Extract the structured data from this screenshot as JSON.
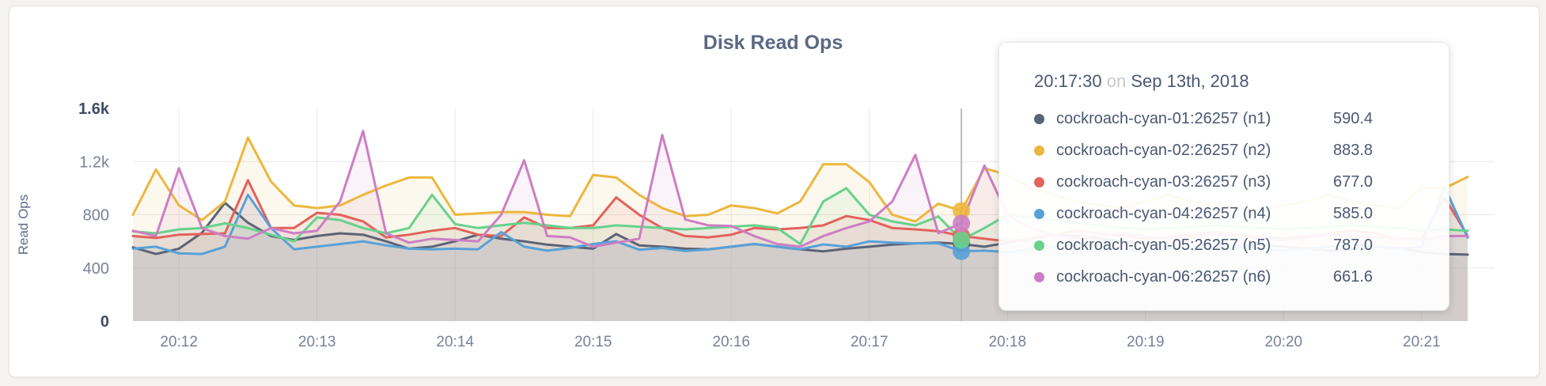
{
  "card": {
    "title": "Disk Read Ops"
  },
  "tooltip": {
    "time": "20:17:30",
    "preposition": "on",
    "date": "Sep 13th, 2018",
    "rows": [
      {
        "label": "cockroach-cyan-01:26257 (n1)",
        "value": "590.4",
        "color": "#5c6377"
      },
      {
        "label": "cockroach-cyan-02:26257 (n2)",
        "value": "883.8",
        "color": "#ecb73e"
      },
      {
        "label": "cockroach-cyan-03:26257 (n3)",
        "value": "677.0",
        "color": "#e2625c"
      },
      {
        "label": "cockroach-cyan-04:26257 (n4)",
        "value": "585.0",
        "color": "#58a1d8"
      },
      {
        "label": "cockroach-cyan-05:26257 (n5)",
        "value": "787.0",
        "color": "#68d18c"
      },
      {
        "label": "cockroach-cyan-06:26257 (n6)",
        "value": "661.6",
        "color": "#cc7ec4"
      }
    ]
  },
  "colors": {
    "page_bg": "#f4f3f1",
    "card_bg": "#ffffff",
    "title": "#5a6884",
    "grid": "#e9e8e5",
    "hover_line": "#bcbcbc",
    "axis_text": "#77819a",
    "axis_text_emph": "#3f4b66"
  },
  "chart_data": {
    "type": "line",
    "title": "Disk Read Ops",
    "xlabel": "",
    "ylabel": "Read Ops",
    "ylim": [
      0,
      1600
    ],
    "grid": true,
    "legend_position": "tooltip-overlay",
    "x_start": "20:11:40",
    "x_interval_seconds": 10,
    "x_ticks": [
      {
        "i": 2,
        "label": "20:12"
      },
      {
        "i": 8,
        "label": "20:13"
      },
      {
        "i": 14,
        "label": "20:14"
      },
      {
        "i": 20,
        "label": "20:15"
      },
      {
        "i": 26,
        "label": "20:16"
      },
      {
        "i": 32,
        "label": "20:17"
      },
      {
        "i": 38,
        "label": "20:18"
      },
      {
        "i": 44,
        "label": "20:19"
      },
      {
        "i": 50,
        "label": "20:20"
      },
      {
        "i": 56,
        "label": "20:21"
      }
    ],
    "y_ticks": [
      {
        "value": 0,
        "label": "0",
        "emphasis": true,
        "grid": false
      },
      {
        "value": 400,
        "label": "400",
        "emphasis": false,
        "grid": true
      },
      {
        "value": 800,
        "label": "800",
        "emphasis": false,
        "grid": true
      },
      {
        "value": 1200,
        "label": "1.2k",
        "emphasis": false,
        "grid": true
      },
      {
        "value": 1600,
        "label": "1.6k",
        "emphasis": true,
        "grid": false
      }
    ],
    "hover": {
      "line_index": 36,
      "tooltip_point_time": "20:17:30",
      "tooltip_point_index": 35
    },
    "series": [
      {
        "name": "cockroach-cyan-01:26257 (n1)",
        "node": "n1",
        "color": "#5c6377",
        "values": [
          555,
          505,
          545,
          665,
          890,
          740,
          640,
          610,
          640,
          660,
          650,
          600,
          545,
          560,
          600,
          650,
          620,
          600,
          575,
          560,
          545,
          655,
          570,
          560,
          545,
          540,
          560,
          580,
          560,
          540,
          525,
          545,
          560,
          575,
          585,
          590.4,
          580,
          560,
          590,
          620,
          650,
          640,
          620,
          600,
          580,
          560,
          545,
          555,
          565,
          575,
          560,
          545,
          530,
          545,
          560,
          550,
          520,
          505,
          500
        ]
      },
      {
        "name": "cockroach-cyan-02:26257 (n2)",
        "node": "n2",
        "color": "#ecb73e",
        "values": [
          800,
          1140,
          870,
          760,
          900,
          1380,
          1050,
          870,
          850,
          870,
          950,
          1020,
          1080,
          1080,
          800,
          810,
          820,
          820,
          800,
          790,
          1100,
          1080,
          950,
          850,
          790,
          800,
          870,
          850,
          810,
          900,
          1180,
          1180,
          1045,
          800,
          750,
          883.8,
          830,
          1150,
          1100,
          1000,
          950,
          900,
          870,
          850,
          900,
          950,
          900,
          870,
          850,
          830,
          870,
          900,
          950,
          900,
          870,
          850,
          1000,
          1000,
          1085
        ]
      },
      {
        "name": "cockroach-cyan-03:26257 (n3)",
        "node": "n3",
        "color": "#e2625c",
        "values": [
          640,
          625,
          650,
          655,
          660,
          1060,
          700,
          700,
          815,
          800,
          750,
          630,
          650,
          680,
          700,
          650,
          640,
          780,
          700,
          700,
          720,
          930,
          800,
          700,
          640,
          630,
          650,
          700,
          690,
          700,
          720,
          790,
          760,
          700,
          690,
          677,
          640,
          620,
          600,
          620,
          650,
          680,
          660,
          640,
          620,
          630,
          650,
          670,
          650,
          630,
          620,
          640,
          660,
          680,
          660,
          620,
          620,
          930,
          640
        ]
      },
      {
        "name": "cockroach-cyan-04:26257 (n4)",
        "node": "n4",
        "color": "#58a1d8",
        "values": [
          545,
          560,
          510,
          505,
          560,
          950,
          700,
          540,
          560,
          580,
          600,
          570,
          545,
          540,
          545,
          540,
          670,
          560,
          530,
          550,
          580,
          600,
          537,
          550,
          527,
          540,
          560,
          580,
          560,
          540,
          577,
          560,
          600,
          590,
          585,
          585,
          525,
          530,
          520,
          540,
          560,
          580,
          560,
          540,
          530,
          545,
          560,
          575,
          560,
          545,
          530,
          545,
          560,
          580,
          560,
          545,
          560,
          1007,
          628
        ]
      },
      {
        "name": "cockroach-cyan-05:26257 (n5)",
        "node": "n5",
        "color": "#68d18c",
        "values": [
          675,
          660,
          690,
          700,
          735,
          700,
          650,
          600,
          780,
          760,
          700,
          660,
          700,
          950,
          730,
          700,
          720,
          740,
          720,
          700,
          700,
          720,
          710,
          700,
          690,
          700,
          710,
          720,
          700,
          580,
          900,
          1000,
          800,
          750,
          720,
          787,
          610,
          700,
          800,
          780,
          760,
          740,
          720,
          700,
          690,
          700,
          710,
          720,
          710,
          700,
          690,
          700,
          710,
          720,
          710,
          700,
          680,
          690,
          680
        ]
      },
      {
        "name": "cockroach-cyan-06:26257 (n6)",
        "node": "n6",
        "color": "#cc7ec4",
        "values": [
          680,
          640,
          1150,
          700,
          640,
          620,
          700,
          660,
          680,
          900,
          1430,
          660,
          590,
          620,
          610,
          600,
          800,
          1210,
          640,
          630,
          560,
          590,
          620,
          1400,
          765,
          720,
          716,
          640,
          580,
          560,
          640,
          700,
          750,
          900,
          1250,
          661.6,
          735,
          1170,
          800,
          700,
          650,
          620,
          640,
          660,
          640,
          620,
          630,
          650,
          640,
          620,
          610,
          630,
          650,
          640,
          630,
          620,
          610,
          640,
          640
        ]
      }
    ]
  }
}
